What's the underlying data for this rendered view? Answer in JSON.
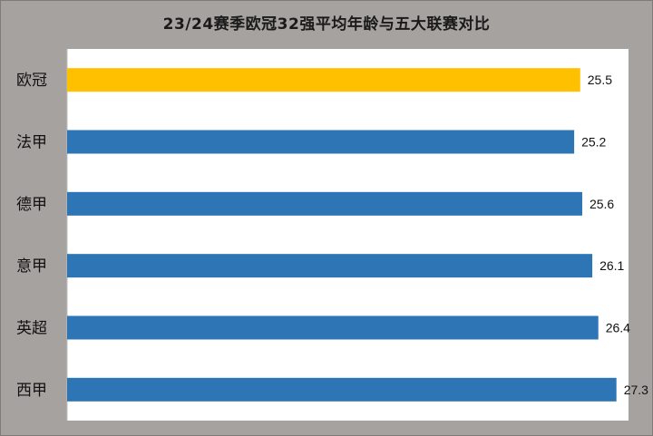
{
  "colors": {
    "highlight": "#ffc000",
    "bar": "#2e75b6"
  },
  "chart_data": {
    "type": "bar",
    "orientation": "horizontal",
    "title": "23/24赛季欧冠32强平均年龄与五大联赛对比",
    "xlabel": "",
    "ylabel": "",
    "xlim": [
      0,
      27.9
    ],
    "grid": false,
    "legend": "none",
    "categories": [
      "欧冠",
      "法甲",
      "德甲",
      "意甲",
      "英超",
      "西甲"
    ],
    "values": [
      25.5,
      25.2,
      25.6,
      26.1,
      26.4,
      27.3
    ],
    "value_labels": [
      "25.5",
      "25.2",
      "25.6",
      "26.1",
      "26.4",
      "27.3"
    ],
    "highlight_category": "欧冠"
  }
}
